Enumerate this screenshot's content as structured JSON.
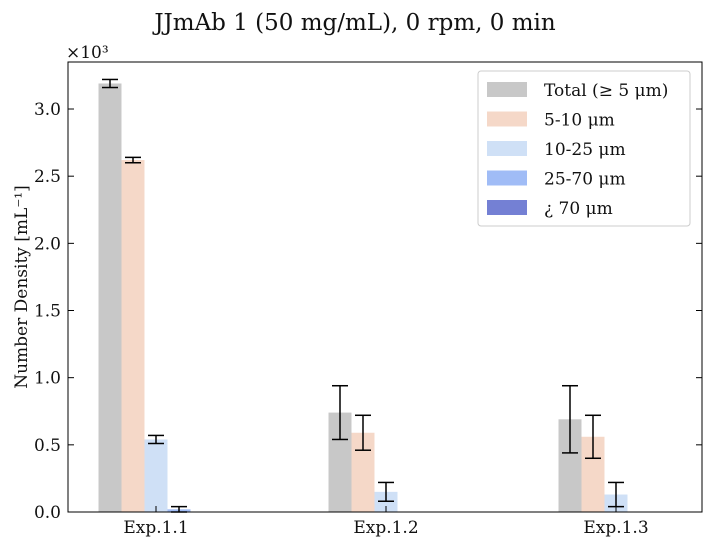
{
  "chart_data": {
    "type": "bar",
    "title": "JJmAb 1 (50 mg/mL), 0 rpm, 0 min",
    "ylabel": "Number Density [mL⁻¹]",
    "xlabel": "",
    "y_multiplier": "×10³",
    "ylim": [
      0,
      3.35
    ],
    "yticks": [
      "0.0",
      "0.5",
      "1.0",
      "1.5",
      "2.0",
      "2.5",
      "3.0"
    ],
    "ytick_values": [
      0,
      0.5,
      1.0,
      1.5,
      2.0,
      2.5,
      3.0
    ],
    "categories": [
      "Exp.1.1",
      "Exp.1.2",
      "Exp.1.3"
    ],
    "legend_position": "top-right",
    "series": [
      {
        "name": "Total (≥ 5 μm)",
        "color": "#c8c8c8",
        "values": [
          3.19,
          0.74,
          0.69
        ],
        "errors": [
          0.03,
          0.2,
          0.25
        ]
      },
      {
        "name": "5-10 μm",
        "color": "#f5d8c8",
        "values": [
          2.62,
          0.59,
          0.56
        ],
        "errors": [
          0.02,
          0.13,
          0.16
        ]
      },
      {
        "name": "10-25 μm",
        "color": "#cfe0f6",
        "values": [
          0.54,
          0.15,
          0.13
        ],
        "errors": [
          0.03,
          0.07,
          0.09
        ]
      },
      {
        "name": "25-70 μm",
        "color": "#a0bcf6",
        "values": [
          0.02,
          0.0,
          0.0
        ],
        "errors": [
          0.02,
          0.0,
          0.0
        ]
      },
      {
        "name": "¿ 70 μm",
        "color": "#7480d4",
        "values": [
          0.0,
          0.0,
          0.0
        ],
        "errors": [
          0.0,
          0.0,
          0.0
        ]
      }
    ]
  }
}
